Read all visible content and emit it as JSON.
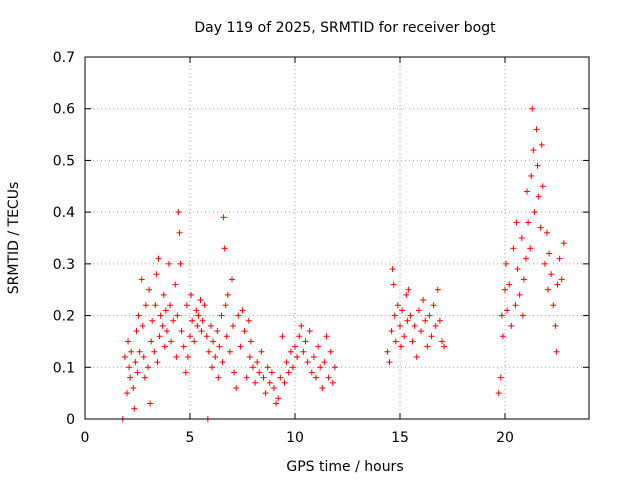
{
  "chart_data": {
    "type": "scatter",
    "title": "Day 119 of 2025, SRMTID for receiver bogt",
    "xlabel": "GPS time / hours",
    "ylabel": "SRMTID / TECUs",
    "xlim": [
      0,
      24
    ],
    "ylim": [
      0,
      0.7
    ],
    "xticks": [
      "0",
      "5",
      "10",
      "15",
      "20"
    ],
    "xtick_values": [
      0,
      5,
      10,
      15,
      20
    ],
    "yticks": [
      "0",
      "0.1",
      "0.2",
      "0.3",
      "0.4",
      "0.5",
      "0.6",
      "0.7"
    ],
    "ytick_values": [
      0,
      0.1,
      0.2,
      0.3,
      0.4,
      0.5,
      0.6,
      0.7
    ],
    "grid": true,
    "marker": "plus",
    "series": [
      {
        "name": "SRMTID",
        "color": "#ff0000",
        "points": [
          [
            1.8,
            0.0
          ],
          [
            1.9,
            0.12
          ],
          [
            2.0,
            0.05
          ],
          [
            2.05,
            0.15
          ],
          [
            2.1,
            0.1
          ],
          [
            2.15,
            0.08
          ],
          [
            2.2,
            0.13
          ],
          [
            2.3,
            0.06
          ],
          [
            2.35,
            0.02
          ],
          [
            2.4,
            0.11
          ],
          [
            2.45,
            0.17
          ],
          [
            2.5,
            0.09
          ],
          [
            2.55,
            0.2
          ],
          [
            2.6,
            0.13
          ],
          [
            2.7,
            0.27
          ],
          [
            2.75,
            0.18
          ],
          [
            2.8,
            0.12
          ],
          [
            2.85,
            0.08
          ],
          [
            2.9,
            0.22
          ],
          [
            3.0,
            0.1
          ],
          [
            3.05,
            0.25
          ],
          [
            3.1,
            0.03
          ],
          [
            3.15,
            0.15
          ],
          [
            3.2,
            0.19
          ],
          [
            3.3,
            0.13
          ],
          [
            3.35,
            0.22
          ],
          [
            3.4,
            0.28
          ],
          [
            3.45,
            0.11
          ],
          [
            3.5,
            0.31
          ],
          [
            3.55,
            0.16
          ],
          [
            3.6,
            0.2
          ],
          [
            3.7,
            0.18
          ],
          [
            3.75,
            0.24
          ],
          [
            3.8,
            0.14
          ],
          [
            3.85,
            0.21
          ],
          [
            3.9,
            0.17
          ],
          [
            4.0,
            0.3
          ],
          [
            4.05,
            0.22
          ],
          [
            4.1,
            0.15
          ],
          [
            4.2,
            0.19
          ],
          [
            4.3,
            0.26
          ],
          [
            4.35,
            0.12
          ],
          [
            4.4,
            0.2
          ],
          [
            4.45,
            0.4
          ],
          [
            4.5,
            0.36
          ],
          [
            4.55,
            0.3
          ],
          [
            4.6,
            0.17
          ],
          [
            4.7,
            0.14
          ],
          [
            4.8,
            0.09
          ],
          [
            4.85,
            0.22
          ],
          [
            4.9,
            0.12
          ],
          [
            5.0,
            0.16
          ],
          [
            5.05,
            0.24
          ],
          [
            5.1,
            0.19
          ],
          [
            5.2,
            0.15
          ],
          [
            5.3,
            0.21
          ],
          [
            5.35,
            0.18
          ],
          [
            5.4,
            0.2
          ],
          [
            5.5,
            0.23
          ],
          [
            5.55,
            0.17
          ],
          [
            5.6,
            0.19
          ],
          [
            5.7,
            0.22
          ],
          [
            5.8,
            0.16
          ],
          [
            5.85,
            0.0
          ],
          [
            5.9,
            0.13
          ],
          [
            6.0,
            0.18
          ],
          [
            6.05,
            0.1
          ],
          [
            6.1,
            0.15
          ],
          [
            6.2,
            0.12
          ],
          [
            6.3,
            0.17
          ],
          [
            6.35,
            0.08
          ],
          [
            6.4,
            0.14
          ],
          [
            6.5,
            0.2
          ],
          [
            6.55,
            0.11
          ],
          [
            6.6,
            0.39
          ],
          [
            6.65,
            0.33
          ],
          [
            6.7,
            0.22
          ],
          [
            6.75,
            0.16
          ],
          [
            6.8,
            0.24
          ],
          [
            6.9,
            0.13
          ],
          [
            7.0,
            0.27
          ],
          [
            7.05,
            0.18
          ],
          [
            7.1,
            0.09
          ],
          [
            7.2,
            0.06
          ],
          [
            7.3,
            0.2
          ],
          [
            7.4,
            0.14
          ],
          [
            7.5,
            0.21
          ],
          [
            7.6,
            0.17
          ],
          [
            7.7,
            0.08
          ],
          [
            7.8,
            0.19
          ],
          [
            7.85,
            0.12
          ],
          [
            7.9,
            0.15
          ],
          [
            8.0,
            0.1
          ],
          [
            8.1,
            0.07
          ],
          [
            8.2,
            0.11
          ],
          [
            8.3,
            0.09
          ],
          [
            8.4,
            0.13
          ],
          [
            8.5,
            0.08
          ],
          [
            8.6,
            0.05
          ],
          [
            8.7,
            0.1
          ],
          [
            8.8,
            0.07
          ],
          [
            8.9,
            0.09
          ],
          [
            9.0,
            0.06
          ],
          [
            9.1,
            0.03
          ],
          [
            9.2,
            0.04
          ],
          [
            9.3,
            0.08
          ],
          [
            9.4,
            0.16
          ],
          [
            9.5,
            0.07
          ],
          [
            9.6,
            0.11
          ],
          [
            9.7,
            0.09
          ],
          [
            9.8,
            0.13
          ],
          [
            9.9,
            0.1
          ],
          [
            10.0,
            0.14
          ],
          [
            10.1,
            0.12
          ],
          [
            10.2,
            0.16
          ],
          [
            10.3,
            0.18
          ],
          [
            10.4,
            0.13
          ],
          [
            10.5,
            0.15
          ],
          [
            10.6,
            0.11
          ],
          [
            10.7,
            0.17
          ],
          [
            10.8,
            0.09
          ],
          [
            10.9,
            0.12
          ],
          [
            11.0,
            0.08
          ],
          [
            11.1,
            0.14
          ],
          [
            11.2,
            0.1
          ],
          [
            11.3,
            0.06
          ],
          [
            11.4,
            0.11
          ],
          [
            11.5,
            0.16
          ],
          [
            11.6,
            0.08
          ],
          [
            11.7,
            0.13
          ],
          [
            11.8,
            0.07
          ],
          [
            11.9,
            0.1
          ],
          [
            14.4,
            0.13
          ],
          [
            14.5,
            0.11
          ],
          [
            14.6,
            0.17
          ],
          [
            14.65,
            0.29
          ],
          [
            14.7,
            0.26
          ],
          [
            14.75,
            0.2
          ],
          [
            14.8,
            0.15
          ],
          [
            14.9,
            0.22
          ],
          [
            15.0,
            0.18
          ],
          [
            15.05,
            0.14
          ],
          [
            15.1,
            0.21
          ],
          [
            15.2,
            0.16
          ],
          [
            15.3,
            0.24
          ],
          [
            15.35,
            0.19
          ],
          [
            15.4,
            0.25
          ],
          [
            15.5,
            0.2
          ],
          [
            15.6,
            0.15
          ],
          [
            15.7,
            0.18
          ],
          [
            15.8,
            0.12
          ],
          [
            15.9,
            0.21
          ],
          [
            16.0,
            0.17
          ],
          [
            16.1,
            0.23
          ],
          [
            16.2,
            0.19
          ],
          [
            16.3,
            0.14
          ],
          [
            16.4,
            0.2
          ],
          [
            16.5,
            0.16
          ],
          [
            16.6,
            0.22
          ],
          [
            16.7,
            0.18
          ],
          [
            16.8,
            0.25
          ],
          [
            16.9,
            0.19
          ],
          [
            17.0,
            0.15
          ],
          [
            17.1,
            0.14
          ],
          [
            19.7,
            0.05
          ],
          [
            19.8,
            0.08
          ],
          [
            19.85,
            0.2
          ],
          [
            19.9,
            0.16
          ],
          [
            20.0,
            0.25
          ],
          [
            20.05,
            0.3
          ],
          [
            20.1,
            0.21
          ],
          [
            20.2,
            0.26
          ],
          [
            20.3,
            0.18
          ],
          [
            20.4,
            0.33
          ],
          [
            20.5,
            0.22
          ],
          [
            20.55,
            0.38
          ],
          [
            20.6,
            0.29
          ],
          [
            20.7,
            0.24
          ],
          [
            20.8,
            0.35
          ],
          [
            20.85,
            0.2
          ],
          [
            20.9,
            0.27
          ],
          [
            21.0,
            0.31
          ],
          [
            21.05,
            0.44
          ],
          [
            21.1,
            0.38
          ],
          [
            21.2,
            0.33
          ],
          [
            21.25,
            0.47
          ],
          [
            21.3,
            0.6
          ],
          [
            21.35,
            0.52
          ],
          [
            21.4,
            0.4
          ],
          [
            21.5,
            0.56
          ],
          [
            21.55,
            0.49
          ],
          [
            21.6,
            0.43
          ],
          [
            21.7,
            0.37
          ],
          [
            21.75,
            0.53
          ],
          [
            21.8,
            0.45
          ],
          [
            21.9,
            0.3
          ],
          [
            22.0,
            0.36
          ],
          [
            22.05,
            0.25
          ],
          [
            22.1,
            0.32
          ],
          [
            22.2,
            0.28
          ],
          [
            22.3,
            0.22
          ],
          [
            22.4,
            0.18
          ],
          [
            22.45,
            0.13
          ],
          [
            22.5,
            0.26
          ],
          [
            22.6,
            0.31
          ],
          [
            22.7,
            0.27
          ],
          [
            22.8,
            0.34
          ]
        ]
      }
    ]
  }
}
